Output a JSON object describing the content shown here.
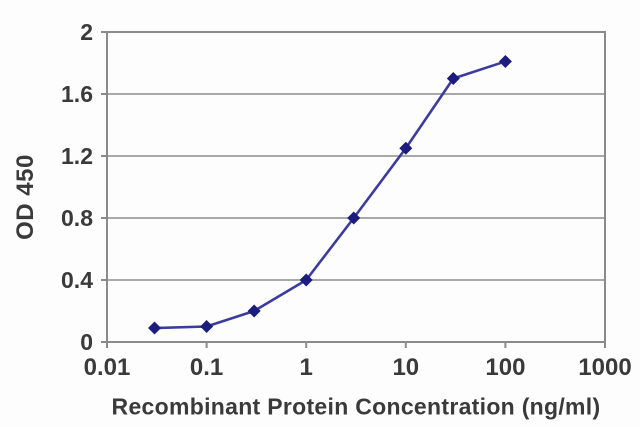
{
  "chart_data": {
    "type": "line",
    "title": "",
    "xlabel": "Recombinant Protein Concentration (ng/ml)",
    "ylabel": "OD 450",
    "x_scale": "log",
    "xlim": [
      0.01,
      1000
    ],
    "ylim": [
      0,
      2
    ],
    "x_ticks": [
      0.01,
      0.1,
      1,
      10,
      100,
      1000
    ],
    "x_tick_labels": [
      "0.01",
      "0.1",
      "1",
      "10",
      "100",
      "1000"
    ],
    "y_ticks": [
      0,
      0.4,
      0.8,
      1.2,
      1.6,
      2
    ],
    "y_tick_labels": [
      "0",
      "0.4",
      "0.8",
      "1.2",
      "1.6",
      "2"
    ],
    "grid": "horizontal",
    "legend": "none",
    "series": [
      {
        "name": "OD 450",
        "marker": "diamond",
        "x": [
          0.03,
          0.1,
          0.3,
          1,
          3,
          10,
          30,
          100
        ],
        "y": [
          0.09,
          0.1,
          0.2,
          0.4,
          0.8,
          1.25,
          1.7,
          1.81
        ]
      }
    ],
    "colors": {
      "line": "#3c3c9e",
      "marker": "#1c1c7e",
      "grid": "#9c9c9c",
      "border": "#8a8a8a",
      "text": "#3a3a3a",
      "background": "#fdfdfe"
    }
  }
}
